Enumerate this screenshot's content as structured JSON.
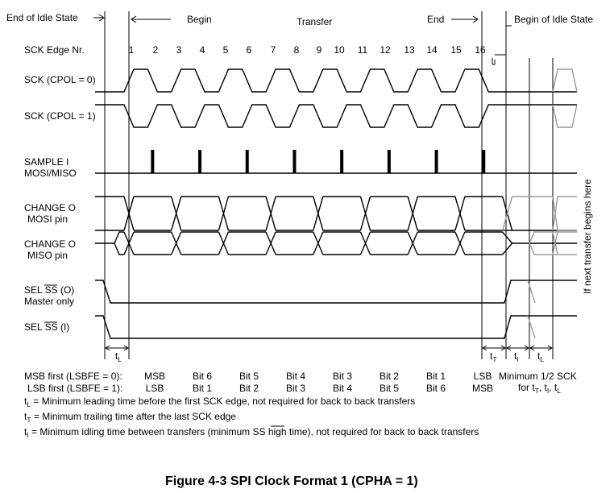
{
  "header": {
    "end_idle": "End of Idle State",
    "begin": "Begin",
    "transfer": "Transfer",
    "end": "End",
    "begin_idle": "Begin of Idle State",
    "edge_label": "SCK Edge Nr.",
    "edges": [
      "1",
      "2",
      "3",
      "4",
      "5",
      "6",
      "7",
      "8",
      "9",
      "10",
      "11",
      "12",
      "13",
      "14",
      "15",
      "16"
    ]
  },
  "rows": {
    "sck0": "SCK (CPOL = 0)",
    "sck1": "SCK (CPOL = 1)",
    "sample_1": "SAMPLE I",
    "sample_2": "MOSI/MISO",
    "mosi_1": "CHANGE O",
    "mosi_2": "MOSI pin",
    "miso_1": "CHANGE O",
    "miso_2": "MISO pin",
    "selo_prefix": "SEL",
    "selo_ss": "SS",
    "selo_suffix": "(O)",
    "selo_2": "Master only",
    "seli_prefix": "SEL",
    "seli_ss": "SS",
    "seli_suffix": "(I)"
  },
  "vertical_note": "If next transfer begins here",
  "timing": {
    "tL": "t",
    "tL_sub": "L",
    "tT": "t",
    "tT_sub": "T",
    "tI": "t",
    "tI_sub": "I",
    "tL2": "t",
    "tL2_sub": "L"
  },
  "bits": {
    "msb_label": "MSB first (LSBFE = 0):",
    "lsb_label": "LSB first (LSBFE = 1):",
    "msb_values": [
      "MSB",
      "Bit 6",
      "Bit 5",
      "Bit 4",
      "Bit 3",
      "Bit 2",
      "Bit 1",
      "LSB"
    ],
    "lsb_values": [
      "LSB",
      "Bit 1",
      "Bit 2",
      "Bit 3",
      "Bit 4",
      "Bit 5",
      "Bit 6",
      "MSB"
    ],
    "min_1": "Minimum 1/2 SCK",
    "min_2": "for t",
    "min_2_sub": "T",
    "min_2_b": ", t",
    "min_2_sub_b": "I",
    "min_2_c": ", t",
    "min_2_sub_c": "L"
  },
  "notes": [
    {
      "t": "t",
      "sub": "L",
      "text": " = Minimum leading time before the first SCK edge, not required for back to back transfers"
    },
    {
      "t": "t",
      "sub": "T",
      "text": " = Minimum trailing time after the last SCK edge"
    },
    {
      "t": "t",
      "sub": "I",
      "text": " = Minimum idling time between transfers (minimum ",
      "ss": "SS",
      "tail": " high time), not required for back to back transfers"
    }
  ],
  "caption": "Figure 4-3  SPI Clock Format 1 (CPHA = 1)"
}
